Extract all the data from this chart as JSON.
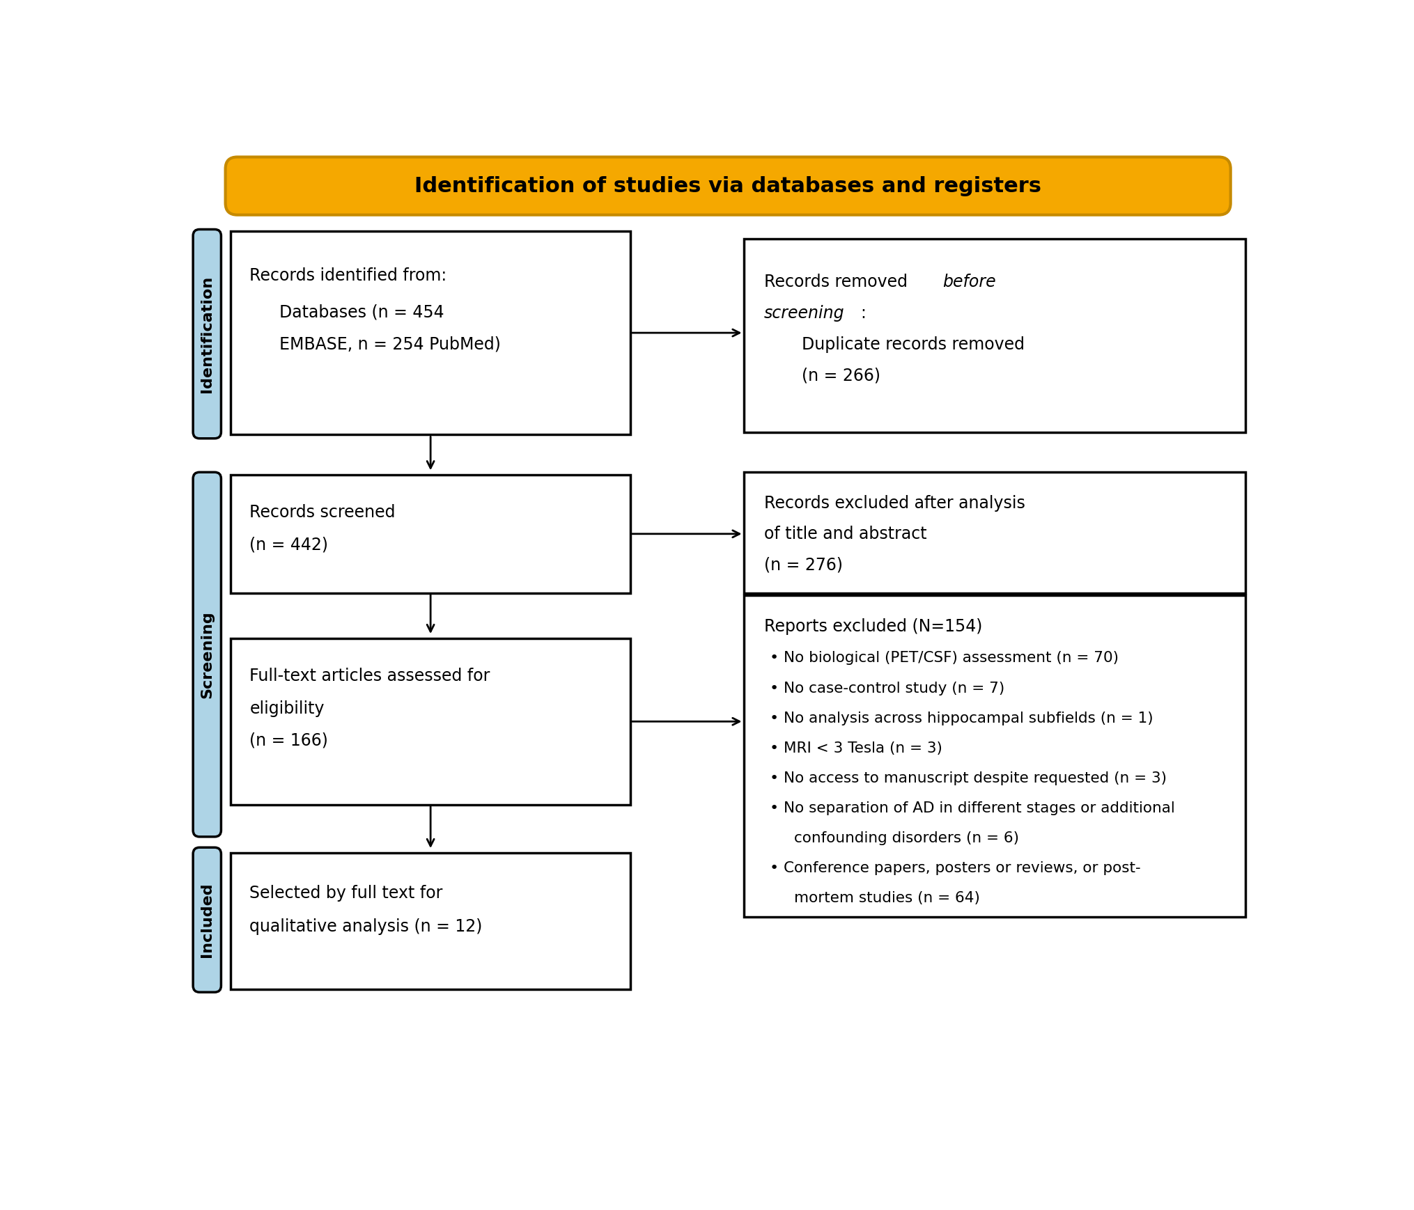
{
  "title": "Identification of studies via databases and registers",
  "title_bg": "#F5A800",
  "title_border": "#C68A00",
  "title_text_color": "#000000",
  "sidebar_color": "#AED4E6",
  "sidebar_border": "#000000",
  "box_border_color": "#000000",
  "box_bg": "#FFFFFF",
  "sidebar_labels": [
    "Identification",
    "Screening",
    "Included"
  ],
  "arrow_color": "#000000"
}
